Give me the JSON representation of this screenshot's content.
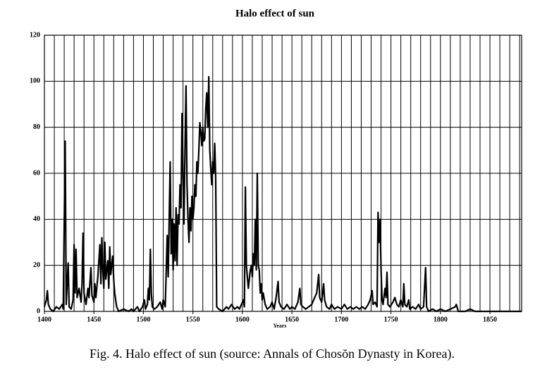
{
  "chart_data": {
    "type": "line",
    "title": "Halo effect of sun",
    "x_label": "Years",
    "caption": "Fig. 4. Halo effect of sun (source: Annals of Chosŏn Dynasty in Korea).",
    "color": "#000000",
    "grid": true,
    "xlim": [
      1400,
      1882
    ],
    "ylim": [
      0,
      120
    ],
    "xticks": [
      1400,
      1450,
      1500,
      1550,
      1600,
      1650,
      1700,
      1750,
      1800,
      1850
    ],
    "yticks": [
      0,
      20,
      40,
      60,
      80,
      100,
      120
    ],
    "xgrid": [
      1400,
      1410,
      1420,
      1430,
      1440,
      1450,
      1460,
      1470,
      1480,
      1490,
      1500,
      1510,
      1520,
      1530,
      1540,
      1550,
      1560,
      1570,
      1580,
      1590,
      1600,
      1610,
      1620,
      1630,
      1640,
      1650,
      1660,
      1670,
      1680,
      1690,
      1700,
      1710,
      1720,
      1730,
      1740,
      1750,
      1760,
      1770,
      1780,
      1790,
      1800,
      1810,
      1820,
      1830,
      1840,
      1850,
      1860,
      1870,
      1880
    ],
    "x": [
      1400,
      1402,
      1403,
      1404,
      1406,
      1409,
      1412,
      1415,
      1418,
      1419,
      1421,
      1422,
      1424,
      1425,
      1427,
      1429,
      1430,
      1431,
      1432,
      1433,
      1435,
      1437,
      1438,
      1439,
      1440,
      1442,
      1444,
      1445,
      1447,
      1448,
      1450,
      1451,
      1452,
      1454,
      1456,
      1457,
      1458,
      1459,
      1460,
      1461,
      1462,
      1464,
      1465,
      1466,
      1467,
      1469,
      1470,
      1471,
      1473,
      1475,
      1480,
      1485,
      1488,
      1490,
      1494,
      1496,
      1499,
      1501,
      1502,
      1504,
      1505,
      1506,
      1507,
      1508,
      1509,
      1511,
      1514,
      1517,
      1519,
      1520,
      1522,
      1524,
      1525,
      1527,
      1528,
      1529,
      1530,
      1531,
      1532,
      1533,
      1534,
      1535,
      1536,
      1537,
      1538,
      1539,
      1540,
      1541,
      1542,
      1543,
      1544,
      1545,
      1546,
      1547,
      1548,
      1549,
      1550,
      1551,
      1552,
      1553,
      1554,
      1555,
      1556,
      1557,
      1558,
      1559,
      1560,
      1561,
      1562,
      1563,
      1564,
      1565,
      1566,
      1567,
      1568,
      1569,
      1570,
      1571,
      1572,
      1573,
      1574,
      1576,
      1580,
      1584,
      1586,
      1589,
      1592,
      1595,
      1597,
      1599,
      1601,
      1602,
      1603,
      1604,
      1605,
      1606,
      1607,
      1608,
      1609,
      1610,
      1611,
      1612,
      1613,
      1614,
      1615,
      1616,
      1617,
      1618,
      1619,
      1620,
      1621,
      1623,
      1625,
      1628,
      1630,
      1632,
      1634,
      1636,
      1637,
      1639,
      1642,
      1645,
      1648,
      1650,
      1653,
      1656,
      1658,
      1659,
      1661,
      1664,
      1667,
      1670,
      1673,
      1675,
      1677,
      1678,
      1680,
      1682,
      1683,
      1685,
      1688,
      1690,
      1693,
      1696,
      1700,
      1703,
      1706,
      1709,
      1712,
      1715,
      1718,
      1721,
      1724,
      1727,
      1729,
      1731,
      1732,
      1734,
      1736,
      1737,
      1738,
      1739,
      1740,
      1741,
      1742,
      1744,
      1745,
      1746,
      1747,
      1749,
      1752,
      1754,
      1756,
      1758,
      1760,
      1762,
      1763,
      1764,
      1766,
      1768,
      1769,
      1772,
      1775,
      1778,
      1780,
      1783,
      1785,
      1786,
      1788,
      1792,
      1796,
      1800,
      1805,
      1810,
      1815,
      1816,
      1818,
      1825,
      1830,
      1835,
      1840,
      1850,
      1860,
      1870,
      1882
    ],
    "values": [
      2,
      5,
      9,
      3,
      1,
      0,
      2,
      1,
      3,
      1,
      74,
      3,
      21,
      2,
      1,
      5,
      29,
      8,
      27,
      6,
      10,
      4,
      12,
      34,
      8,
      3,
      10,
      6,
      19,
      7,
      4,
      12,
      6,
      15,
      29,
      12,
      32,
      18,
      10,
      30,
      14,
      22,
      10,
      28,
      16,
      24,
      14,
      8,
      2,
      0,
      1,
      0,
      1,
      0,
      2,
      0,
      2,
      5,
      1,
      3,
      10,
      5,
      27,
      8,
      2,
      1,
      2,
      4,
      1,
      5,
      2,
      33,
      15,
      65,
      25,
      40,
      18,
      38,
      22,
      45,
      20,
      42,
      38,
      55,
      45,
      86,
      60,
      38,
      70,
      98,
      55,
      40,
      30,
      45,
      35,
      50,
      40,
      45,
      55,
      50,
      65,
      60,
      70,
      82,
      78,
      72,
      80,
      74,
      75,
      88,
      95,
      80,
      102,
      70,
      62,
      55,
      65,
      60,
      73,
      58,
      2,
      1,
      0,
      2,
      1,
      3,
      1,
      2,
      1,
      3,
      5,
      2,
      54,
      20,
      15,
      10,
      14,
      18,
      20,
      15,
      25,
      20,
      40,
      18,
      60,
      20,
      18,
      8,
      12,
      5,
      8,
      3,
      1,
      2,
      4,
      1,
      6,
      13,
      4,
      2,
      1,
      3,
      1,
      2,
      1,
      4,
      10,
      3,
      2,
      1,
      2,
      3,
      6,
      8,
      16,
      6,
      4,
      12,
      5,
      2,
      1,
      3,
      1,
      2,
      1,
      3,
      1,
      2,
      1,
      2,
      1,
      2,
      1,
      3,
      5,
      9,
      3,
      4,
      2,
      43,
      30,
      40,
      18,
      5,
      3,
      10,
      6,
      17,
      3,
      2,
      4,
      6,
      3,
      2,
      5,
      2,
      12,
      3,
      2,
      5,
      1,
      2,
      1,
      3,
      1,
      2,
      19,
      2,
      0,
      1,
      0,
      1,
      0,
      1,
      2,
      3,
      0,
      0,
      1,
      0,
      0,
      0,
      0,
      0,
      0
    ]
  }
}
